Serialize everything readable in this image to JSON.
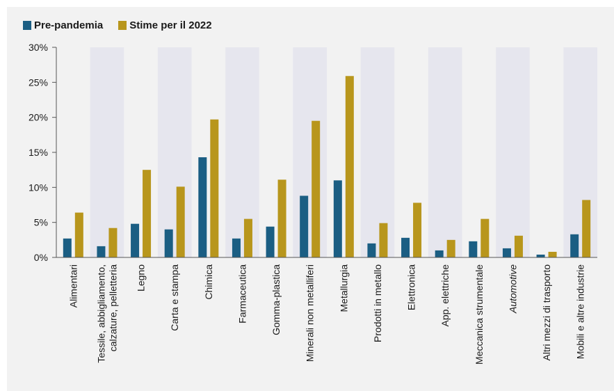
{
  "colors": {
    "pre": "#1b5e83",
    "est": "#b8961c",
    "band": "#e6e6ee",
    "panel": "#f2f2f2"
  },
  "chart_data": {
    "type": "bar",
    "title": "",
    "xlabel": "",
    "ylabel": "",
    "ylim": [
      0,
      30
    ],
    "yticks": [
      0,
      5,
      10,
      15,
      20,
      25,
      30
    ],
    "ytick_labels": [
      "0%",
      "5%",
      "10%",
      "15%",
      "20%",
      "25%",
      "30%"
    ],
    "legend_position": "top-left",
    "categories": [
      "Alimentari",
      "Tessile, abbigliamento,\ncalzature, pelletteria",
      "Legno",
      "Carta e stampa",
      "Chimica",
      "Farmaceutica",
      "Gomma-plastica",
      "Minerali non metalliferi",
      "Metallurgia",
      "Prodotti in metallo",
      "Elettronica",
      "App. elettriche",
      "Meccanica strumentale",
      "Automotive",
      "Altri mezzi di trasporto",
      "Mobili e altre industrie"
    ],
    "italic_categories": [
      "Automotive"
    ],
    "series": [
      {
        "name": "Pre-pandemia",
        "values": [
          2.7,
          1.6,
          4.8,
          4.0,
          14.3,
          2.7,
          4.4,
          8.8,
          11.0,
          2.0,
          2.8,
          1.0,
          2.3,
          1.3,
          0.4,
          3.3
        ]
      },
      {
        "name": "Stime per il 2022",
        "values": [
          6.4,
          4.2,
          12.5,
          10.1,
          19.7,
          5.5,
          11.1,
          19.5,
          25.9,
          4.9,
          7.8,
          2.5,
          5.5,
          3.1,
          0.8,
          8.2
        ]
      }
    ]
  }
}
